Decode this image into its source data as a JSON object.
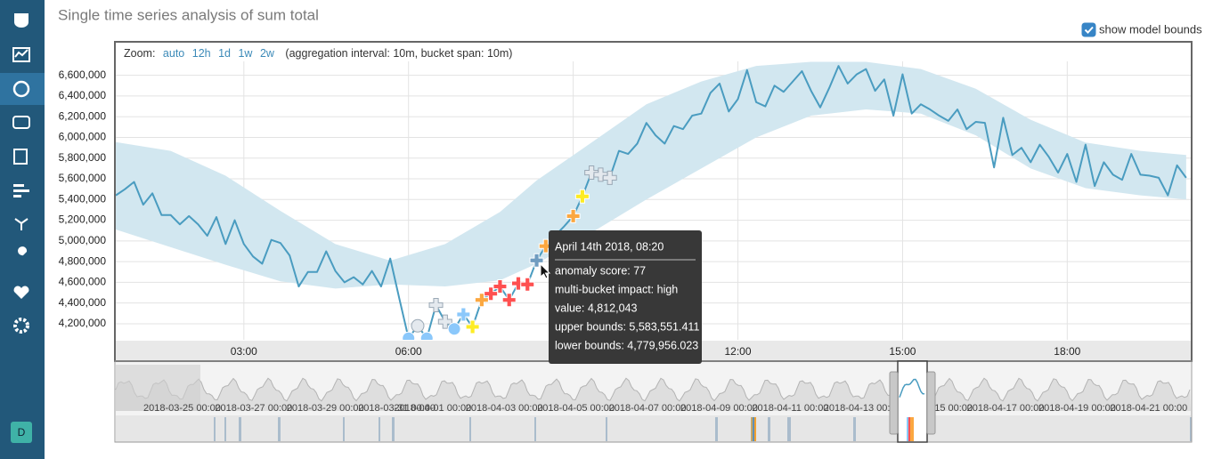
{
  "header": {
    "title": "Single time series analysis of sum total",
    "model_bounds_label": "show model bounds",
    "show_model_bounds": true
  },
  "zoom": {
    "label": "Zoom:",
    "options": [
      "auto",
      "12h",
      "1d",
      "1w",
      "2w"
    ],
    "note": "(aggregation interval: 10m, bucket span: 10m)"
  },
  "chart_data": {
    "type": "line",
    "x": [
      40,
      50,
      60,
      70,
      80,
      90,
      100,
      110,
      120,
      130,
      140,
      150,
      160,
      170,
      180,
      190,
      200,
      210,
      220,
      230,
      240,
      250,
      260,
      270,
      280,
      290,
      300,
      310,
      320,
      330,
      340,
      350,
      360,
      370,
      380,
      390,
      400,
      410,
      420,
      430,
      440,
      450,
      460,
      470,
      480,
      490,
      500,
      510,
      520,
      530,
      540,
      550,
      560,
      570,
      580,
      590,
      600,
      610,
      620,
      630,
      640,
      650,
      660,
      670,
      680,
      690,
      700,
      710,
      720,
      730,
      740,
      750,
      760,
      770,
      780,
      790,
      800,
      810,
      820,
      830,
      840,
      850,
      860,
      870,
      880,
      890,
      900,
      910,
      920,
      930,
      940,
      950,
      960,
      970,
      980,
      990,
      1000,
      1010,
      1020,
      1030,
      1040,
      1050,
      1060,
      1070,
      1080,
      1090,
      1100,
      1110,
      1120,
      1130,
      1140,
      1150,
      1160,
      1170,
      1180,
      1190,
      1200,
      1210
    ],
    "series": [
      {
        "color": "#4a9cc0",
        "values": [
          5440000,
          5500000,
          5570000,
          5350000,
          5460000,
          5250000,
          5250000,
          5160000,
          5240000,
          5160000,
          5050000,
          5230000,
          4970000,
          5200000,
          4970000,
          4850000,
          4780000,
          5010000,
          4980000,
          4860000,
          4560000,
          4700000,
          4700000,
          4900000,
          4710000,
          4600000,
          4650000,
          4580000,
          4710000,
          4560000,
          4830000,
          4440000,
          4060000,
          4180000,
          4060000,
          4380000,
          4220000,
          4150000,
          4290000,
          4170000,
          4430000,
          4490000,
          4560000,
          4430000,
          4590000,
          4580000,
          4812043,
          4950000,
          5050000,
          5140000,
          5240000,
          5430000,
          5660000,
          5640000,
          5610000,
          5870000,
          5840000,
          5940000,
          6140000,
          6020000,
          5940000,
          6110000,
          6080000,
          6210000,
          6230000,
          6430000,
          6520000,
          6250000,
          6370000,
          6650000,
          6340000,
          6300000,
          6500000,
          6440000,
          6540000,
          6640000,
          6450000,
          6290000,
          6480000,
          6690000,
          6520000,
          6610000,
          6660000,
          6450000,
          6560000,
          6210000,
          6610000,
          6230000,
          6320000,
          6270000,
          6210000,
          6160000,
          6270000,
          6080000,
          6150000,
          6140000,
          5710000,
          6190000,
          5830000,
          5900000,
          5760000,
          5930000,
          5810000,
          5660000,
          5840000,
          5570000,
          5930000,
          5530000,
          5760000,
          5640000,
          5590000,
          5840000,
          5640000,
          5630000,
          5610000,
          5440000,
          5730000,
          5610000
        ]
      }
    ],
    "model_bounds": {
      "color": "#d2e7f0",
      "x": [
        40,
        100,
        160,
        220,
        280,
        340,
        400,
        460,
        500,
        560,
        620,
        680,
        740,
        800,
        860,
        920,
        980,
        1040,
        1100,
        1160,
        1210
      ],
      "upper": [
        5955000,
        5870000,
        5630000,
        5290000,
        4970000,
        4810000,
        4970000,
        5280000,
        5583551.411,
        5950000,
        6320000,
        6540000,
        6690000,
        6730000,
        6730000,
        6660000,
        6470000,
        6170000,
        5950000,
        5870000,
        5830000
      ],
      "lower": [
        5110000,
        4940000,
        4770000,
        4610000,
        4540000,
        4580000,
        4560000,
        4620000,
        4779956.023,
        5080000,
        5400000,
        5700000,
        6000000,
        6210000,
        6270000,
        6230000,
        6020000,
        5700000,
        5510000,
        5440000,
        5400000
      ]
    },
    "anomalies": [
      {
        "x": 360,
        "shape": "circle",
        "color": "#8bc8fb"
      },
      {
        "x": 370,
        "shape": "circle",
        "color": "#e4e9ee"
      },
      {
        "x": 380,
        "shape": "circle",
        "color": "#8bc8fb"
      },
      {
        "x": 390,
        "shape": "cross",
        "color": "#e4e9ee"
      },
      {
        "x": 400,
        "shape": "cross",
        "color": "#e4e9ee"
      },
      {
        "x": 410,
        "shape": "circle",
        "color": "#8bc8fb"
      },
      {
        "x": 420,
        "shape": "cross",
        "color": "#8bc8fb"
      },
      {
        "x": 430,
        "shape": "cross",
        "color": "#fdec25"
      },
      {
        "x": 440,
        "shape": "cross",
        "color": "#fba740"
      },
      {
        "x": 450,
        "shape": "cross",
        "color": "#fe5050"
      },
      {
        "x": 460,
        "shape": "cross",
        "color": "#fe5050"
      },
      {
        "x": 470,
        "shape": "cross",
        "color": "#fe5050"
      },
      {
        "x": 480,
        "shape": "cross",
        "color": "#fe5050"
      },
      {
        "x": 490,
        "shape": "cross",
        "color": "#fe5050"
      },
      {
        "x": 500,
        "shape": "cross",
        "color": "#6f9cc0"
      },
      {
        "x": 510,
        "shape": "cross",
        "color": "#fba740"
      },
      {
        "x": 540,
        "shape": "cross",
        "color": "#fba740"
      },
      {
        "x": 550,
        "shape": "cross",
        "color": "#fdec25"
      },
      {
        "x": 560,
        "shape": "cross",
        "color": "#e4e9ee"
      },
      {
        "x": 570,
        "shape": "cross",
        "color": "#e4e9ee"
      },
      {
        "x": 580,
        "shape": "cross",
        "color": "#e4e9ee"
      }
    ],
    "xlim": [
      40,
      1215
    ],
    "xticks": [
      {
        "value": 180,
        "label": "03:00"
      },
      {
        "value": 360,
        "label": "06:00"
      },
      {
        "value": 540,
        "label": "09:00"
      },
      {
        "value": 720,
        "label": "12:00"
      },
      {
        "value": 900,
        "label": "15:00"
      },
      {
        "value": 1080,
        "label": "18:00"
      }
    ],
    "ylim": [
      4045000,
      6700000
    ],
    "yticks": [
      {
        "value": 4200000,
        "label": "4,200,000"
      },
      {
        "value": 4400000,
        "label": "4,400,000"
      },
      {
        "value": 4600000,
        "label": "4,600,000"
      },
      {
        "value": 4800000,
        "label": "4,800,000"
      },
      {
        "value": 5000000,
        "label": "5,000,000"
      },
      {
        "value": 5200000,
        "label": "5,200,000"
      },
      {
        "value": 5400000,
        "label": "5,400,000"
      },
      {
        "value": 5600000,
        "label": "5,600,000"
      },
      {
        "value": 5800000,
        "label": "5,800,000"
      },
      {
        "value": 6000000,
        "label": "6,000,000"
      },
      {
        "value": 6200000,
        "label": "6,200,000"
      },
      {
        "value": 6400000,
        "label": "6,400,000"
      },
      {
        "value": 6600000,
        "label": "6,600,000"
      }
    ],
    "grid": true
  },
  "tooltip": {
    "title": "April 14th 2018, 08:20",
    "rows": [
      "anomaly score: 77",
      "multi-bucket impact: high",
      "value: 4,812,043",
      "upper bounds: 5,583,551.411",
      "lower bounds: 4,779,956.023"
    ]
  },
  "context": {
    "labels": [
      "2018-03-25 00:00",
      "2018-03-27 00:00",
      "2018-03-29 00:00",
      "2018-03-31 00:00",
      "2018-04-01 00:00",
      "2018-04-03 00:00",
      "2018-04-05 00:00",
      "2018-04-07 00:00",
      "2018-04-09 00:00",
      "2018-04-11 00:00",
      "2018-04-13 00:00",
      "2018-04-15 00:00",
      "2018-04-17 00:00",
      "2018-04-19 00:00",
      "2018-04-21 00:00"
    ]
  },
  "sidebar": {
    "avatar": "D"
  }
}
